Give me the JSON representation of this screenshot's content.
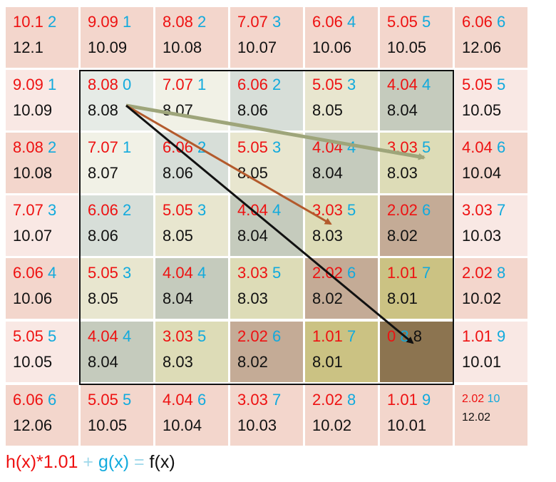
{
  "grid": {
    "rows": [
      [
        {
          "h": "10.1",
          "g": "2",
          "f": "12.1",
          "bg": "#f3d6cc"
        },
        {
          "h": "9.09",
          "g": "1",
          "f": "10.09",
          "bg": "#f3d6cc"
        },
        {
          "h": "8.08",
          "g": "2",
          "f": "10.08",
          "bg": "#f3d6cc"
        },
        {
          "h": "7.07",
          "g": "3",
          "f": "10.07",
          "bg": "#f3d6cc"
        },
        {
          "h": "6.06",
          "g": "4",
          "f": "10.06",
          "bg": "#f3d6cc"
        },
        {
          "h": "5.05",
          "g": "5",
          "f": "10.05",
          "bg": "#f3d6cc"
        },
        {
          "h": "6.06",
          "g": "6",
          "f": "12.06",
          "bg": "#f3d6cc"
        }
      ],
      [
        {
          "h": "9.09",
          "g": "1",
          "f": "10.09",
          "bg": "#f9e8e4"
        },
        {
          "h": "8.08",
          "g": "0",
          "f": "8.08",
          "bg": "#e6ebe6"
        },
        {
          "h": "7.07",
          "g": "1",
          "f": "8.07",
          "bg": "#f1f1e6"
        },
        {
          "h": "6.06",
          "g": "2",
          "f": "8.06",
          "bg": "#d7ded8"
        },
        {
          "h": "5.05",
          "g": "3",
          "f": "8.05",
          "bg": "#e8e6cf"
        },
        {
          "h": "4.04",
          "g": "4",
          "f": "8.04",
          "bg": "#c5cbbd"
        },
        {
          "h": "5.05",
          "g": "5",
          "f": "10.05",
          "bg": "#f9e8e4"
        }
      ],
      [
        {
          "h": "8.08",
          "g": "2",
          "f": "10.08",
          "bg": "#f3d6cc"
        },
        {
          "h": "7.07",
          "g": "1",
          "f": "8.07",
          "bg": "#f1f1e6"
        },
        {
          "h": "6.06",
          "g": "2",
          "f": "8.06",
          "bg": "#d7ded8"
        },
        {
          "h": "5.05",
          "g": "3",
          "f": "8.05",
          "bg": "#e8e6cf"
        },
        {
          "h": "4.04",
          "g": "4",
          "f": "8.04",
          "bg": "#c5cbbd"
        },
        {
          "h": "3.03",
          "g": "5",
          "f": "8.03",
          "bg": "#dddcb7"
        },
        {
          "h": "4.04",
          "g": "6",
          "f": "10.04",
          "bg": "#f3d6cc"
        }
      ],
      [
        {
          "h": "7.07",
          "g": "3",
          "f": "10.07",
          "bg": "#f9e8e4"
        },
        {
          "h": "6.06",
          "g": "2",
          "f": "8.06",
          "bg": "#d7ded8"
        },
        {
          "h": "5.05",
          "g": "3",
          "f": "8.05",
          "bg": "#e8e6cf"
        },
        {
          "h": "4.04",
          "g": "4",
          "f": "8.04",
          "bg": "#c5cbbd"
        },
        {
          "h": "3.03",
          "g": "5",
          "f": "8.03",
          "bg": "#dddcb7"
        },
        {
          "h": "2.02",
          "g": "6",
          "f": "8.02",
          "bg": "#c4ab96"
        },
        {
          "h": "3.03",
          "g": "7",
          "f": "10.03",
          "bg": "#f9e8e4"
        }
      ],
      [
        {
          "h": "6.06",
          "g": "4",
          "f": "10.06",
          "bg": "#f3d6cc"
        },
        {
          "h": "5.05",
          "g": "3",
          "f": "8.05",
          "bg": "#e8e6cf"
        },
        {
          "h": "4.04",
          "g": "4",
          "f": "8.04",
          "bg": "#c5cbbd"
        },
        {
          "h": "3.03",
          "g": "5",
          "f": "8.03",
          "bg": "#dddcb7"
        },
        {
          "h": "2.02",
          "g": "6",
          "f": "8.02",
          "bg": "#c4ab96"
        },
        {
          "h": "1.01",
          "g": "7",
          "f": "8.01",
          "bg": "#cbc283"
        },
        {
          "h": "2.02",
          "g": "8",
          "f": "10.02",
          "bg": "#f3d6cc"
        }
      ],
      [
        {
          "h": "5.05",
          "g": "5",
          "f": "10.05",
          "bg": "#f9e8e4"
        },
        {
          "h": "4.04",
          "g": "4",
          "f": "8.04",
          "bg": "#c5cbbd"
        },
        {
          "h": "3.03",
          "g": "5",
          "f": "8.03",
          "bg": "#dddcb7"
        },
        {
          "h": "2.02",
          "g": "6",
          "f": "8.02",
          "bg": "#c4ab96"
        },
        {
          "h": "1.01",
          "g": "7",
          "f": "8.01",
          "bg": "#cbc283"
        },
        {
          "h": "0",
          "g": "8",
          "f": "8",
          "bg": "#8c7450",
          "inline": true
        },
        {
          "h": "1.01",
          "g": "9",
          "f": "10.01",
          "bg": "#f9e8e4"
        }
      ],
      [
        {
          "h": "6.06",
          "g": "6",
          "f": "12.06",
          "bg": "#f3d6cc"
        },
        {
          "h": "5.05",
          "g": "5",
          "f": "10.05",
          "bg": "#f3d6cc"
        },
        {
          "h": "4.04",
          "g": "6",
          "f": "10.04",
          "bg": "#f3d6cc"
        },
        {
          "h": "3.03",
          "g": "7",
          "f": "10.03",
          "bg": "#f3d6cc"
        },
        {
          "h": "2.02",
          "g": "8",
          "f": "10.02",
          "bg": "#f3d6cc"
        },
        {
          "h": "1.01",
          "g": "9",
          "f": "10.01",
          "bg": "#f3d6cc"
        },
        {
          "h": "2.02",
          "g": "10",
          "f": "12.02",
          "bg": "#f3d6cc",
          "small": true
        }
      ]
    ]
  },
  "arrows": [
    {
      "name": "arrow-to-goal",
      "color": "#111111",
      "from": [
        1,
        1
      ],
      "to": [
        5,
        5
      ]
    },
    {
      "name": "arrow-orange",
      "color": "#b35a2c",
      "from": [
        1,
        1
      ],
      "to": [
        3,
        4
      ]
    },
    {
      "name": "arrow-olive",
      "color": "#9ea57a",
      "from": [
        1,
        1
      ],
      "to": [
        2,
        5
      ]
    }
  ],
  "formula": {
    "h": "h(x)*1.01",
    "plus": "+",
    "g": "g(x)",
    "eq": "=",
    "f": "f(x)"
  }
}
